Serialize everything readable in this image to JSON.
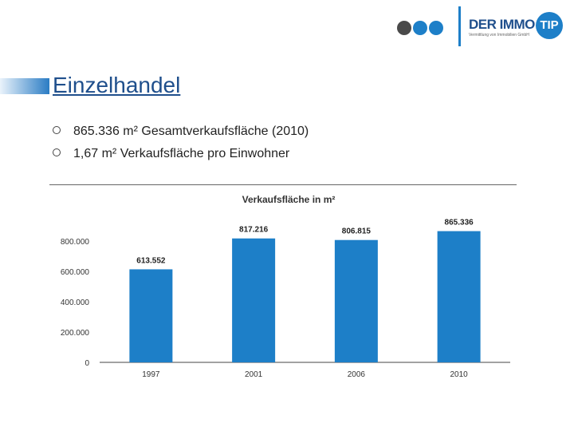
{
  "logo": {
    "dot_colors": [
      "#4a4a4a",
      "#1d7fc8",
      "#1d7fc8",
      "#1d7fc8"
    ],
    "name": "DER IMMO",
    "badge": "TIP",
    "tagline": "Vermittlung von Immobilien GmbH"
  },
  "heading": {
    "title": "Einzelhandel"
  },
  "bullets": [
    "865.336 m² Gesamtverkaufsfläche (2010)",
    "1,67 m² Verkaufsfläche pro Einwohner"
  ],
  "colors": {
    "accent": "#1d7fc8",
    "title": "#1f4f8c"
  },
  "chart_data": {
    "type": "bar",
    "title": "Verkaufsfläche in m²",
    "categories": [
      "1997",
      "2001",
      "2006",
      "2010"
    ],
    "values": [
      613552,
      817216,
      806815,
      865336
    ],
    "data_labels": [
      "613.552",
      "817.216",
      "806.815",
      "865.336"
    ],
    "yticks": [
      0,
      200000,
      400000,
      600000,
      800000
    ],
    "ytick_labels": [
      "0",
      "200.000",
      "400.000",
      "600.000",
      "800.000"
    ],
    "ylim": [
      0,
      800000
    ],
    "xlabel": "",
    "ylabel": "",
    "grid": false,
    "bar_color": "#1d7fc8"
  }
}
